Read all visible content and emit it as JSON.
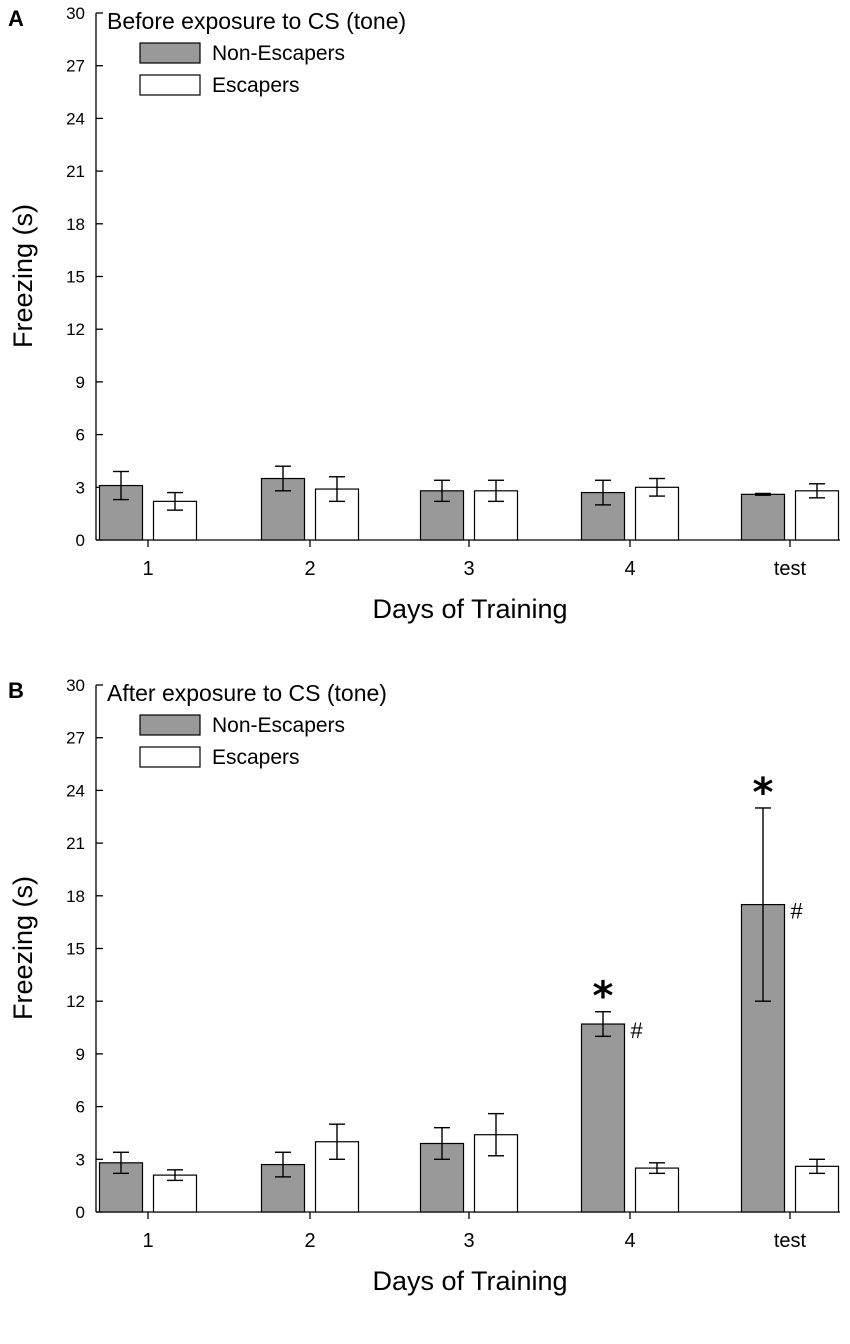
{
  "chart_data": [
    {
      "type": "bar",
      "panel_label": "A",
      "title": "Before exposure to CS (tone)",
      "xlabel": "Days of Training",
      "ylabel": "Freezing (s)",
      "ylim": [
        0,
        30
      ],
      "yticks": [
        "0",
        "3",
        "6",
        "9",
        "12",
        "15",
        "18",
        "21",
        "24",
        "27",
        "30"
      ],
      "categories": [
        "1",
        "2",
        "3",
        "4",
        "test"
      ],
      "series": [
        {
          "name": "Non-Escapers",
          "color": "#999999",
          "values": [
            3.1,
            3.5,
            2.8,
            2.7,
            2.6
          ],
          "errors": [
            0.8,
            0.7,
            0.6,
            0.7,
            0.05
          ]
        },
        {
          "name": "Escapers",
          "color": "#ffffff",
          "values": [
            2.2,
            2.9,
            2.8,
            3.0,
            2.8
          ],
          "errors": [
            0.5,
            0.7,
            0.6,
            0.5,
            0.4
          ]
        }
      ],
      "annotations": []
    },
    {
      "type": "bar",
      "panel_label": "B",
      "title": "After exposure to CS (tone)",
      "xlabel": "Days of Training",
      "ylabel": "Freezing (s)",
      "ylim": [
        0,
        30
      ],
      "yticks": [
        "0",
        "3",
        "6",
        "9",
        "12",
        "15",
        "18",
        "21",
        "24",
        "27",
        "30"
      ],
      "categories": [
        "1",
        "2",
        "3",
        "4",
        "test"
      ],
      "series": [
        {
          "name": "Non-Escapers",
          "color": "#999999",
          "values": [
            2.8,
            2.7,
            3.9,
            10.7,
            17.5
          ],
          "errors": [
            0.6,
            0.7,
            0.9,
            0.7,
            5.5
          ]
        },
        {
          "name": "Escapers",
          "color": "#ffffff",
          "values": [
            2.1,
            4.0,
            4.4,
            2.5,
            2.6
          ],
          "errors": [
            0.3,
            1.0,
            1.2,
            0.3,
            0.4
          ]
        }
      ],
      "annotations": [
        {
          "category": "4",
          "series": "Non-Escapers",
          "star": "*",
          "hash": "#"
        },
        {
          "category": "test",
          "series": "Non-Escapers",
          "star": "*",
          "hash": "#"
        }
      ]
    }
  ]
}
